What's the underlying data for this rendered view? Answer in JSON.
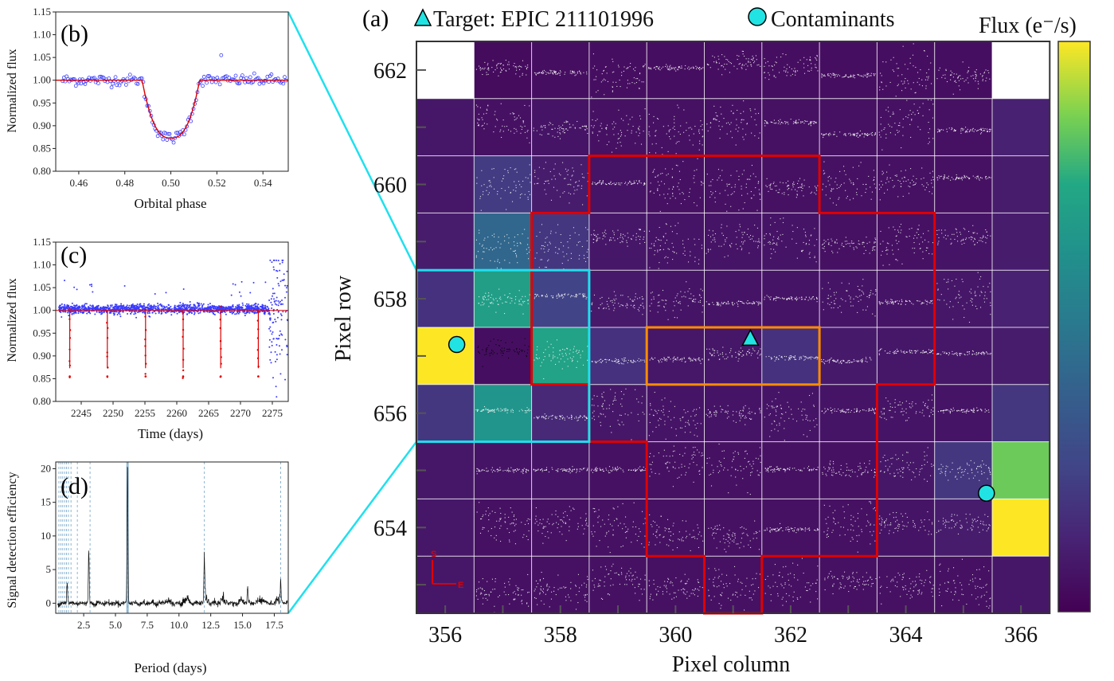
{
  "figure": {
    "panel_b": {
      "tag": "(b)",
      "xlabel": "Orbital phase",
      "ylabel": "Normalized flux",
      "xticks": [
        "0.46",
        "0.48",
        "0.50",
        "0.52",
        "0.54"
      ],
      "yticks": [
        "0.80",
        "0.85",
        "0.90",
        "0.95",
        "1.00",
        "1.05",
        "1.10",
        "1.15"
      ]
    },
    "panel_c": {
      "tag": "(c)",
      "xlabel": "Time (days)",
      "ylabel": "Normalized flux",
      "xticks": [
        "2245",
        "2250",
        "2255",
        "2260",
        "2265",
        "2270",
        "2275"
      ],
      "yticks": [
        "0.80",
        "0.85",
        "0.90",
        "0.95",
        "1.00",
        "1.05",
        "1.10",
        "1.15"
      ]
    },
    "panel_d": {
      "tag": "(d)",
      "xlabel": "Period (days)",
      "ylabel": "Signal detection efficiency",
      "xticks": [
        "2.5",
        "5.0",
        "7.5",
        "10.0",
        "12.5",
        "15.0",
        "17.5"
      ],
      "yticks": [
        "0",
        "5",
        "10",
        "15",
        "20"
      ]
    },
    "panel_a": {
      "tag": "(a)",
      "legend_target": "Target: EPIC 211101996",
      "legend_contaminants": "Contaminants",
      "colorbar_label": "Flux (e⁻/s)",
      "xlabel": "Pixel column",
      "ylabel": "Pixel row",
      "xticks": [
        "356",
        "358",
        "360",
        "362",
        "364",
        "366"
      ],
      "yticks": [
        "662",
        "660",
        "658",
        "656",
        "654"
      ],
      "compass_s": "S",
      "compass_e": "E"
    }
  },
  "colors": {
    "data_points": "#3b3bff",
    "model": "#e00000",
    "aperture": "#e00000",
    "inner_box": "#ff8c00",
    "zoom_box": "#1fe0ee",
    "marker": "#22e3e3",
    "period_marker": "#6fa3c6"
  },
  "chart_data": [
    {
      "panel": "b",
      "type": "scatter",
      "xlabel": "Orbital phase",
      "ylabel": "Normalized flux",
      "xlim": [
        0.45,
        0.551
      ],
      "ylim": [
        0.8,
        1.15
      ],
      "transit_model": {
        "baseline": 1.0,
        "depth_min": 0.873,
        "ingress_start": 0.4875,
        "egress_end": 0.5125
      },
      "points_sample": [
        [
          0.46,
          1.01
        ],
        [
          0.48,
          1.0
        ],
        [
          0.49,
          0.93
        ],
        [
          0.495,
          0.88
        ],
        [
          0.5,
          0.865
        ],
        [
          0.505,
          0.87
        ],
        [
          0.51,
          0.92
        ],
        [
          0.515,
          1.0
        ],
        [
          0.522,
          1.055
        ],
        [
          0.54,
          1.005
        ]
      ]
    },
    {
      "panel": "c",
      "type": "scatter",
      "xlabel": "Time (days)",
      "ylabel": "Normalized flux",
      "xlim": [
        2241,
        2277.5
      ],
      "ylim": [
        0.8,
        1.15
      ],
      "transit_times": [
        2243.2,
        2249.1,
        2255.1,
        2261.0,
        2266.9,
        2272.8
      ],
      "transit_depth_min": 0.855
    },
    {
      "panel": "d",
      "type": "line",
      "xlabel": "Period (days)",
      "ylabel": "Signal detection efficiency",
      "xlim": [
        0.3,
        18.6
      ],
      "ylim": [
        -1.5,
        21
      ],
      "peaks": [
        [
          1.2,
          3.0
        ],
        [
          2.9,
          7.8
        ],
        [
          5.95,
          21.0
        ],
        [
          12.0,
          6.2
        ],
        [
          15.4,
          2.5
        ],
        [
          18.0,
          2.7
        ]
      ],
      "marked_periods": [
        0.55,
        0.7,
        0.85,
        1.0,
        1.15,
        1.3,
        1.5,
        2.0,
        3.0,
        5.95,
        12.0,
        18.0
      ]
    },
    {
      "panel": "a",
      "type": "heatmap",
      "xlabel": "Pixel column",
      "ylabel": "Pixel row",
      "columns": [
        356,
        357,
        358,
        359,
        360,
        361,
        362,
        363,
        364,
        365,
        366
      ],
      "rows": [
        662,
        661,
        660,
        659,
        658,
        657,
        656,
        655,
        654,
        653
      ],
      "target": {
        "column": 361.3,
        "row": 657.3
      },
      "contaminants": [
        {
          "column": 356.2,
          "row": 657.2
        },
        {
          "column": 365.4,
          "row": 654.6
        }
      ],
      "flux_levels": [
        [
          null,
          0.04,
          0.05,
          0.05,
          0.05,
          0.05,
          0.05,
          0.05,
          0.05,
          0.05,
          null
        ],
        [
          0.08,
          0.06,
          0.07,
          0.06,
          0.06,
          0.06,
          0.06,
          0.06,
          0.06,
          0.06,
          0.12
        ],
        [
          0.08,
          0.22,
          0.1,
          0.07,
          0.06,
          0.06,
          0.06,
          0.06,
          0.06,
          0.06,
          0.1
        ],
        [
          0.1,
          0.42,
          0.2,
          0.08,
          0.07,
          0.07,
          0.07,
          0.06,
          0.06,
          0.07,
          0.1
        ],
        [
          0.18,
          0.7,
          0.25,
          0.09,
          0.07,
          0.07,
          0.07,
          0.07,
          0.07,
          0.08,
          0.12
        ],
        [
          1.0,
          0.05,
          0.72,
          0.18,
          0.08,
          0.08,
          0.18,
          0.09,
          0.08,
          0.08,
          0.1
        ],
        [
          0.2,
          0.65,
          0.15,
          0.08,
          0.07,
          0.07,
          0.07,
          0.07,
          0.07,
          0.07,
          0.2
        ],
        [
          0.08,
          0.07,
          0.07,
          0.06,
          0.06,
          0.06,
          0.06,
          0.06,
          0.08,
          0.2,
          0.85
        ],
        [
          0.08,
          0.06,
          0.06,
          0.06,
          0.06,
          0.06,
          0.06,
          0.06,
          0.07,
          0.1,
          1.0
        ],
        [
          0.08,
          0.06,
          0.06,
          0.06,
          0.06,
          0.06,
          0.06,
          0.06,
          0.06,
          0.06,
          0.08
        ]
      ],
      "colormap": "viridis"
    }
  ]
}
